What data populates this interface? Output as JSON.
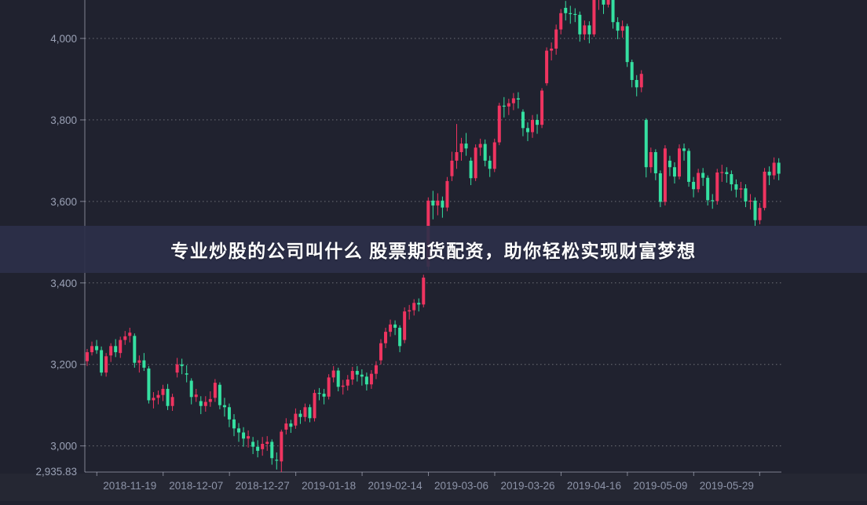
{
  "banner": {
    "text": "专业炒股的公司叫什么 股票期货配资，助你轻松实现财富梦想"
  },
  "colors": {
    "background": "#20222f",
    "banner_bg": "#2d304a",
    "bullish_red": "#ef3460",
    "bearish_green": "#35e0a1",
    "grid": "rgba(255,255,255,0.35)",
    "axis": "rgba(205,210,225,0.55)",
    "y_label": "#9aa1b5",
    "x_label": "#8b92a6"
  },
  "chart_data": {
    "type": "candlestick",
    "title": "",
    "convention": "china-red-up-green-down",
    "ylim": [
      2935.83,
      4094
    ],
    "grid": "dashed-horizontal",
    "y_axis": {
      "ticks": [
        {
          "label": "4,000",
          "value": 4000
        },
        {
          "label": "3,800",
          "value": 3800
        },
        {
          "label": "3,600",
          "value": 3600
        },
        {
          "label": "3,400",
          "value": 3400
        },
        {
          "label": "3,200",
          "value": 3200
        },
        {
          "label": "3,000",
          "value": 3000
        }
      ],
      "min_label": {
        "label": "2,935.83",
        "value": 2935.83
      }
    },
    "x_axis": {
      "labels": [
        "2018-11-19",
        "2018-12-07",
        "2018-12-27",
        "2019-01-18",
        "2019-02-14",
        "2019-03-06",
        "2019-03-26",
        "2019-04-16",
        "2019-05-09",
        "2019-05-29"
      ]
    },
    "columns": [
      "date",
      "open",
      "close",
      "low",
      "high"
    ],
    "candles": [
      [
        "2018-11-06",
        3208,
        3230,
        3196,
        3238
      ],
      [
        "2018-11-07",
        3230,
        3245,
        3222,
        3256
      ],
      [
        "2018-11-08",
        3245,
        3235,
        3226,
        3260
      ],
      [
        "2018-11-09",
        3235,
        3180,
        3172,
        3244
      ],
      [
        "2018-11-12",
        3180,
        3220,
        3170,
        3228
      ],
      [
        "2018-11-13",
        3222,
        3245,
        3206,
        3252
      ],
      [
        "2018-11-14",
        3245,
        3230,
        3218,
        3262
      ],
      [
        "2018-11-15",
        3228,
        3260,
        3216,
        3268
      ],
      [
        "2018-11-16",
        3260,
        3269,
        3248,
        3282
      ],
      [
        "2018-11-19",
        3270,
        3278,
        3254,
        3290
      ],
      [
        "2018-11-20",
        3270,
        3204,
        3192,
        3276
      ],
      [
        "2018-11-21",
        3204,
        3210,
        3180,
        3222
      ],
      [
        "2018-11-22",
        3210,
        3192,
        3184,
        3228
      ],
      [
        "2018-11-23",
        3190,
        3112,
        3104,
        3196
      ],
      [
        "2018-11-26",
        3112,
        3118,
        3092,
        3132
      ],
      [
        "2018-11-27",
        3118,
        3125,
        3102,
        3136
      ],
      [
        "2018-11-28",
        3125,
        3140,
        3110,
        3150
      ],
      [
        "2018-11-29",
        3140,
        3098,
        3088,
        3152
      ],
      [
        "2018-11-30",
        3098,
        3120,
        3086,
        3128
      ],
      [
        "2018-12-03",
        3180,
        3200,
        3168,
        3216
      ],
      [
        "2018-12-04",
        3200,
        3196,
        3176,
        3214
      ],
      [
        "2018-12-05",
        3178,
        3175,
        3156,
        3198
      ],
      [
        "2018-12-06",
        3160,
        3120,
        3102,
        3166
      ],
      [
        "2018-12-07",
        3120,
        3126,
        3108,
        3140
      ],
      [
        "2018-12-10",
        3110,
        3098,
        3078,
        3122
      ],
      [
        "2018-12-11",
        3098,
        3108,
        3084,
        3122
      ],
      [
        "2018-12-12",
        3108,
        3115,
        3096,
        3134
      ],
      [
        "2018-12-13",
        3118,
        3155,
        3108,
        3164
      ],
      [
        "2018-12-14",
        3150,
        3100,
        3090,
        3156
      ],
      [
        "2018-12-17",
        3100,
        3095,
        3072,
        3118
      ],
      [
        "2018-12-18",
        3095,
        3065,
        3046,
        3104
      ],
      [
        "2018-12-19",
        3065,
        3043,
        3024,
        3078
      ],
      [
        "2018-12-20",
        3043,
        3033,
        3010,
        3056
      ],
      [
        "2018-12-21",
        3033,
        3018,
        2998,
        3046
      ],
      [
        "2018-12-24",
        3018,
        3024,
        2996,
        3038
      ],
      [
        "2018-12-25",
        3010,
        2998,
        2980,
        3022
      ],
      [
        "2018-12-26",
        2998,
        2988,
        2972,
        3014
      ],
      [
        "2018-12-27",
        2992,
        3005,
        2976,
        3022
      ],
      [
        "2018-12-28",
        3005,
        3010,
        2988,
        3024
      ],
      [
        "2019-01-02",
        3010,
        2970,
        2954,
        3016
      ],
      [
        "2019-01-03",
        2966,
        2964,
        2942,
        2984
      ],
      [
        "2019-01-04",
        2962,
        3035,
        2935.83,
        3040
      ],
      [
        "2019-01-07",
        3040,
        3055,
        3028,
        3068
      ],
      [
        "2019-01-08",
        3055,
        3047,
        3032,
        3064
      ],
      [
        "2019-01-09",
        3050,
        3079,
        3042,
        3092
      ],
      [
        "2019-01-10",
        3079,
        3071,
        3054,
        3088
      ],
      [
        "2019-01-11",
        3071,
        3095,
        3060,
        3104
      ],
      [
        "2019-01-14",
        3095,
        3068,
        3058,
        3102
      ],
      [
        "2019-01-15",
        3068,
        3130,
        3060,
        3138
      ],
      [
        "2019-01-16",
        3130,
        3128,
        3112,
        3142
      ],
      [
        "2019-01-17",
        3128,
        3121,
        3102,
        3140
      ],
      [
        "2019-01-18",
        3121,
        3168,
        3114,
        3176
      ],
      [
        "2019-01-21",
        3168,
        3185,
        3156,
        3196
      ],
      [
        "2019-01-22",
        3185,
        3145,
        3134,
        3192
      ],
      [
        "2019-01-23",
        3145,
        3148,
        3126,
        3162
      ],
      [
        "2019-01-24",
        3148,
        3163,
        3136,
        3174
      ],
      [
        "2019-01-25",
        3163,
        3184,
        3150,
        3194
      ],
      [
        "2019-01-28",
        3184,
        3175,
        3158,
        3196
      ],
      [
        "2019-01-29",
        3175,
        3170,
        3148,
        3188
      ],
      [
        "2019-01-30",
        3170,
        3151,
        3136,
        3180
      ],
      [
        "2019-01-31",
        3151,
        3177,
        3140,
        3186
      ],
      [
        "2019-02-01",
        3177,
        3198,
        3164,
        3208
      ],
      [
        "2019-02-11",
        3210,
        3252,
        3200,
        3262
      ],
      [
        "2019-02-12",
        3252,
        3280,
        3240,
        3290
      ],
      [
        "2019-02-13",
        3280,
        3298,
        3268,
        3310
      ],
      [
        "2019-02-14",
        3298,
        3290,
        3272,
        3308
      ],
      [
        "2019-02-15",
        3290,
        3245,
        3230,
        3296
      ],
      [
        "2019-02-18",
        3260,
        3330,
        3252,
        3340
      ],
      [
        "2019-02-19",
        3330,
        3333,
        3310,
        3346
      ],
      [
        "2019-02-20",
        3333,
        3351,
        3320,
        3360
      ],
      [
        "2019-02-21",
        3351,
        3347,
        3330,
        3362
      ],
      [
        "2019-02-22",
        3347,
        3413,
        3340,
        3420
      ],
      [
        "2019-02-25",
        3440,
        3602,
        3432,
        3610
      ],
      [
        "2019-02-26",
        3602,
        3590,
        3556,
        3626
      ],
      [
        "2019-02-27",
        3590,
        3602,
        3566,
        3620
      ],
      [
        "2019-02-28",
        3602,
        3585,
        3560,
        3612
      ],
      [
        "2019-03-01",
        3585,
        3650,
        3576,
        3660
      ],
      [
        "2019-03-04",
        3662,
        3700,
        3650,
        3722
      ],
      [
        "2019-03-05",
        3700,
        3721,
        3680,
        3790
      ],
      [
        "2019-03-06",
        3721,
        3742,
        3700,
        3756
      ],
      [
        "2019-03-07",
        3742,
        3730,
        3712,
        3768
      ],
      [
        "2019-03-08",
        3700,
        3657,
        3640,
        3708
      ],
      [
        "2019-03-11",
        3657,
        3732,
        3650,
        3740
      ],
      [
        "2019-03-12",
        3732,
        3741,
        3712,
        3754
      ],
      [
        "2019-03-13",
        3741,
        3700,
        3686,
        3752
      ],
      [
        "2019-03-14",
        3700,
        3680,
        3660,
        3712
      ],
      [
        "2019-03-15",
        3680,
        3745,
        3672,
        3754
      ],
      [
        "2019-03-18",
        3745,
        3835,
        3738,
        3842
      ],
      [
        "2019-03-19",
        3835,
        3833,
        3806,
        3856
      ],
      [
        "2019-03-20",
        3833,
        3841,
        3812,
        3852
      ],
      [
        "2019-03-21",
        3841,
        3853,
        3824,
        3866
      ],
      [
        "2019-03-22",
        3853,
        3850,
        3828,
        3868
      ],
      [
        "2019-03-25",
        3820,
        3780,
        3760,
        3826
      ],
      [
        "2019-03-26",
        3780,
        3770,
        3748,
        3794
      ],
      [
        "2019-03-27",
        3770,
        3800,
        3756,
        3812
      ],
      [
        "2019-03-28",
        3800,
        3788,
        3766,
        3814
      ],
      [
        "2019-03-29",
        3788,
        3872,
        3780,
        3878
      ],
      [
        "2019-04-01",
        3890,
        3970,
        3884,
        3978
      ],
      [
        "2019-04-02",
        3970,
        3975,
        3946,
        3990
      ],
      [
        "2019-04-03",
        3975,
        4022,
        3960,
        4034
      ],
      [
        "2019-04-04",
        4022,
        4062,
        4010,
        4072
      ],
      [
        "2019-04-08",
        4075,
        4062,
        4044,
        4092
      ],
      [
        "2019-04-09",
        4062,
        4060,
        4036,
        4080
      ],
      [
        "2019-04-10",
        4060,
        4058,
        4040,
        4074
      ],
      [
        "2019-04-11",
        4058,
        4010,
        3992,
        4066
      ],
      [
        "2019-04-12",
        4010,
        4032,
        3996,
        4044
      ],
      [
        "2019-04-15",
        4032,
        4010,
        3988,
        4042
      ],
      [
        "2019-04-16",
        4010,
        4096,
        4004,
        4106
      ],
      [
        "2019-04-17",
        4096,
        4099,
        4070,
        4118
      ],
      [
        "2019-04-18",
        4099,
        4083,
        4060,
        4110
      ],
      [
        "2019-04-19",
        4083,
        4120,
        4076,
        4126
      ],
      [
        "2019-04-22",
        4120,
        4040,
        4024,
        4124
      ],
      [
        "2019-04-23",
        4040,
        4019,
        3998,
        4052
      ],
      [
        "2019-04-24",
        4019,
        4030,
        4002,
        4044
      ],
      [
        "2019-04-25",
        4030,
        3942,
        3930,
        4036
      ],
      [
        "2019-04-26",
        3942,
        3898,
        3880,
        3948
      ],
      [
        "2019-04-29",
        3898,
        3880,
        3858,
        3910
      ],
      [
        "2019-04-30",
        3880,
        3913,
        3868,
        3922
      ],
      [
        "2019-05-06",
        3800,
        3684,
        3659,
        3804
      ],
      [
        "2019-05-07",
        3684,
        3721,
        3670,
        3732
      ],
      [
        "2019-05-08",
        3721,
        3669,
        3652,
        3728
      ],
      [
        "2019-05-09",
        3669,
        3599,
        3586,
        3676
      ],
      [
        "2019-05-10",
        3599,
        3730,
        3590,
        3738
      ],
      [
        "2019-05-13",
        3700,
        3684,
        3662,
        3712
      ],
      [
        "2019-05-14",
        3684,
        3661,
        3644,
        3696
      ],
      [
        "2019-05-15",
        3661,
        3730,
        3654,
        3740
      ],
      [
        "2019-05-16",
        3730,
        3724,
        3700,
        3742
      ],
      [
        "2019-05-17",
        3724,
        3648,
        3636,
        3730
      ],
      [
        "2019-05-20",
        3648,
        3630,
        3610,
        3660
      ],
      [
        "2019-05-21",
        3630,
        3670,
        3622,
        3680
      ],
      [
        "2019-05-22",
        3670,
        3658,
        3638,
        3682
      ],
      [
        "2019-05-23",
        3658,
        3603,
        3590,
        3664
      ],
      [
        "2019-05-24",
        3603,
        3601,
        3582,
        3618
      ],
      [
        "2019-05-27",
        3601,
        3671,
        3592,
        3680
      ],
      [
        "2019-05-28",
        3671,
        3672,
        3648,
        3690
      ],
      [
        "2019-05-29",
        3672,
        3667,
        3646,
        3684
      ],
      [
        "2019-05-30",
        3667,
        3642,
        3626,
        3676
      ],
      [
        "2019-05-31",
        3642,
        3629,
        3610,
        3654
      ],
      [
        "2019-06-03",
        3629,
        3632,
        3608,
        3648
      ],
      [
        "2019-06-04",
        3632,
        3600,
        3586,
        3642
      ],
      [
        "2019-06-05",
        3600,
        3602,
        3580,
        3618
      ],
      [
        "2019-06-06",
        3602,
        3554,
        3540,
        3610
      ],
      [
        "2019-06-10",
        3554,
        3584,
        3544,
        3596
      ],
      [
        "2019-06-11",
        3584,
        3673,
        3578,
        3682
      ],
      [
        "2019-06-12",
        3673,
        3664,
        3640,
        3686
      ],
      [
        "2019-06-13",
        3664,
        3695,
        3654,
        3708
      ],
      [
        "2019-06-14",
        3695,
        3668,
        3652,
        3706
      ]
    ]
  }
}
